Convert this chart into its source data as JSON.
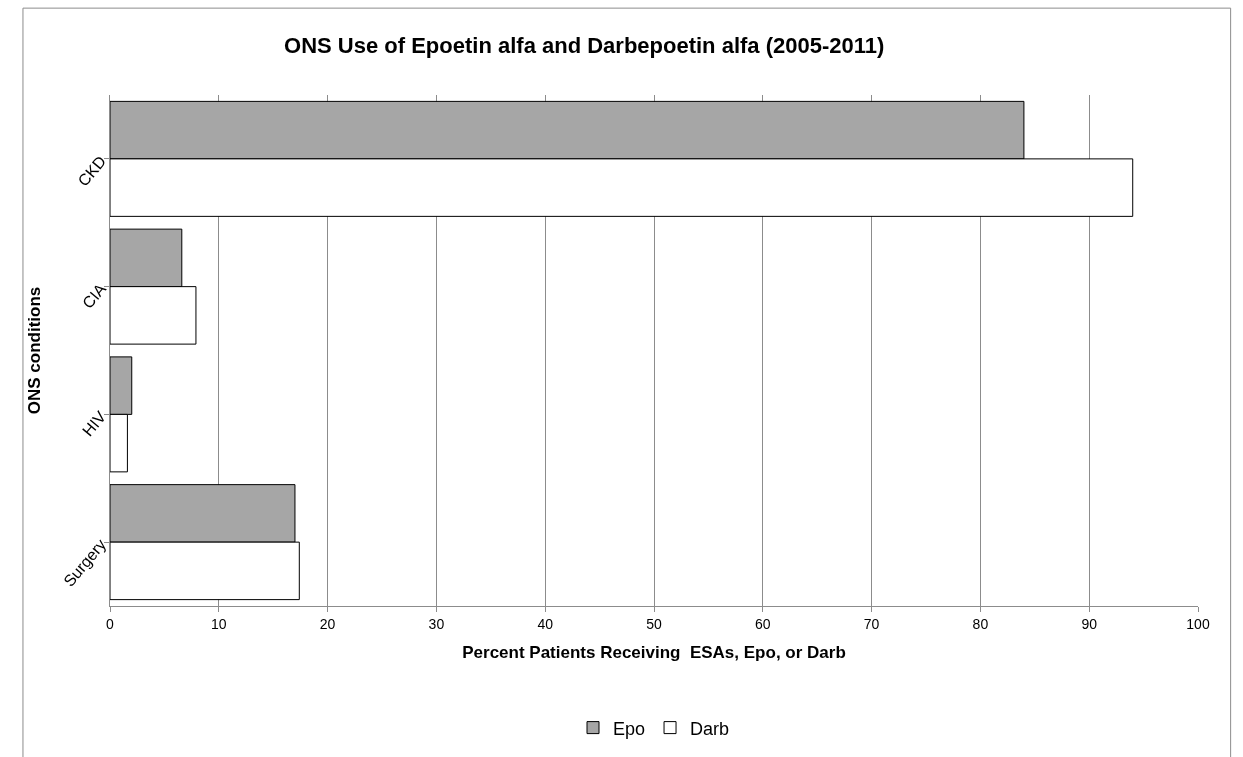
{
  "chart_data": {
    "type": "bar",
    "orientation": "horizontal",
    "title": "ONS Use of Epoetin alfa and Darbepoetin alfa (2005-2011)",
    "xlabel": "Percent Patients Receiving  ESAs, Epo, or Darb",
    "ylabel": "ONS conditions",
    "categories": [
      "CKD",
      "CIA",
      "HIV",
      "Surgery"
    ],
    "series": [
      {
        "name": "Epo",
        "color": "#a6a6a6",
        "values": [
          84,
          6.6,
          2.0,
          17.0
        ]
      },
      {
        "name": "Darb",
        "color": "#ffffff",
        "values": [
          94,
          7.9,
          1.6,
          17.4
        ]
      }
    ],
    "xlim": [
      0,
      100
    ],
    "xticks": [
      0,
      10,
      20,
      30,
      40,
      50,
      60,
      70,
      80,
      90,
      100
    ],
    "grid": "x",
    "legend": "bottom"
  }
}
